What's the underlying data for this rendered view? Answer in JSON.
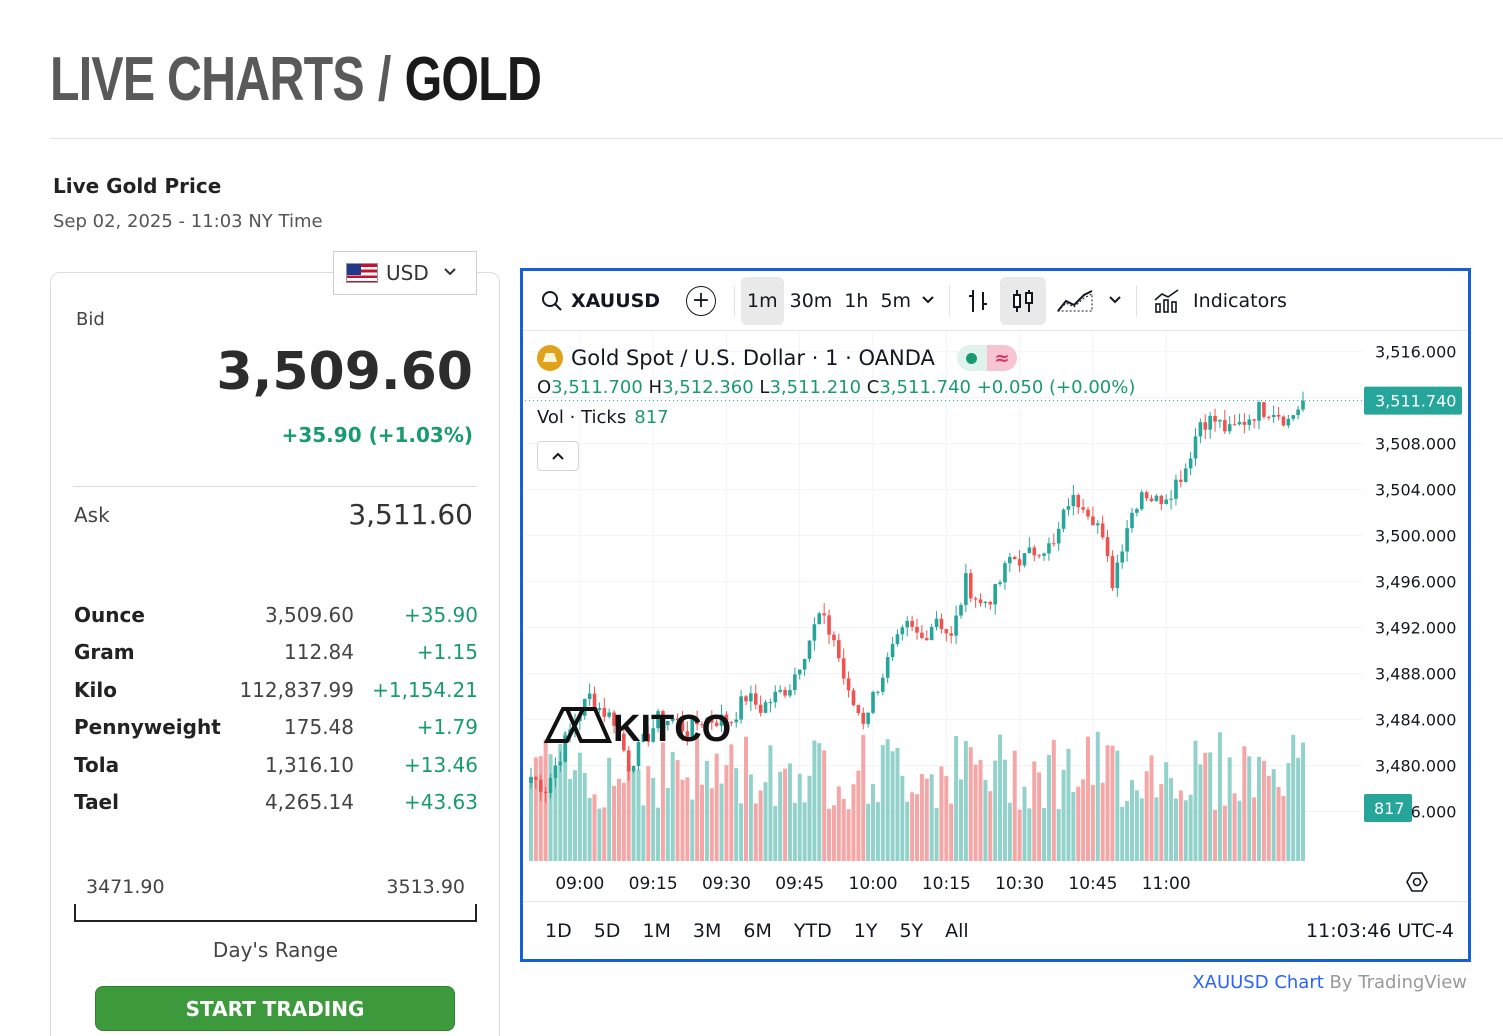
{
  "heading": {
    "part1": "LIVE CHARTS",
    "separator": "/",
    "part2": "GOLD"
  },
  "live_gold": {
    "title": "Live Gold Price",
    "timestamp": "Sep 02, 2025 - 11:03 NY Time"
  },
  "currency": {
    "selected": "USD"
  },
  "bid": {
    "label": "Bid",
    "value": "3,509.60",
    "change": "+35.90 (+1.03%)"
  },
  "ask": {
    "label": "Ask",
    "value": "3,511.60"
  },
  "units": [
    {
      "name": "Ounce",
      "price": "3,509.60",
      "change": "+35.90"
    },
    {
      "name": "Gram",
      "price": "112.84",
      "change": "+1.15"
    },
    {
      "name": "Kilo",
      "price": "112,837.99",
      "change": "+1,154.21"
    },
    {
      "name": "Pennyweight",
      "price": "175.48",
      "change": "+1.79"
    },
    {
      "name": "Tola",
      "price": "1,316.10",
      "change": "+13.46"
    },
    {
      "name": "Tael",
      "price": "4,265.14",
      "change": "+43.63"
    }
  ],
  "day_range": {
    "low": "3471.90",
    "high": "3513.90",
    "label": "Day's Range"
  },
  "cta": {
    "start_trading": "START TRADING"
  },
  "tv": {
    "symbol": "XAUUSD",
    "intervals": [
      "1m",
      "30m",
      "1h",
      "5m"
    ],
    "active_interval": "1m",
    "indicators_label": "Indicators",
    "legend_title": "Gold Spot / U.S. Dollar · 1 · OANDA",
    "ohlc": {
      "o_label": "O",
      "o": "3,511.700",
      "h_label": "H",
      "h": "3,512.360",
      "l_label": "L",
      "l": "3,511.210",
      "c_label": "C",
      "c": "3,511.740",
      "change": "+0.050 (+0.00%)"
    },
    "volume": {
      "label": "Vol · Ticks",
      "value": "817"
    },
    "watermark": "KITCO",
    "last_price_tag": "3,511.740",
    "volume_tag": "817",
    "ranges": [
      "1D",
      "5D",
      "1M",
      "3M",
      "6M",
      "YTD",
      "1Y",
      "5Y",
      "All"
    ],
    "clock": "11:03:46 UTC-4",
    "attribution_link": "XAUUSD Chart",
    "attribution_by": "By TradingView",
    "colors": {
      "up": "#26a69a",
      "down": "#ef5350",
      "up_vol": "#92d2cb",
      "down_vol": "#f4a7a6",
      "frame": "#1560d4"
    }
  },
  "chart_data": {
    "type": "candlestick",
    "interval": "1m",
    "x_ticks": [
      "09:00",
      "09:15",
      "09:30",
      "09:45",
      "10:00",
      "10:15",
      "10:30",
      "10:45",
      "11:00"
    ],
    "y_ticks": [
      3516,
      3512,
      3508,
      3504,
      3500,
      3496,
      3492,
      3488,
      3484,
      3480,
      3476
    ],
    "y_tick_labels": [
      "3,516.000",
      "3,512.000",
      "3,508.000",
      "3,504.000",
      "3,500.000",
      "3,496.000",
      "3,492.000",
      "3,488.000",
      "3,484.000",
      "3,480.000",
      "3,476.000"
    ],
    "ylim": [
      3474.3,
      3517.8
    ],
    "close_path": [
      [
        0,
        3479
      ],
      [
        3,
        3478
      ],
      [
        6,
        3481
      ],
      [
        9,
        3484
      ],
      [
        12,
        3486
      ],
      [
        14,
        3485
      ],
      [
        17,
        3484
      ],
      [
        20,
        3480
      ],
      [
        23,
        3482
      ],
      [
        26,
        3484
      ],
      [
        29,
        3484
      ],
      [
        32,
        3483
      ],
      [
        35,
        3484
      ],
      [
        38,
        3484
      ],
      [
        41,
        3484
      ],
      [
        44,
        3486
      ],
      [
        47,
        3485
      ],
      [
        50,
        3486
      ],
      [
        53,
        3487
      ],
      [
        56,
        3490
      ],
      [
        59,
        3493
      ],
      [
        62,
        3491
      ],
      [
        65,
        3486
      ],
      [
        68,
        3484
      ],
      [
        71,
        3487
      ],
      [
        74,
        3490
      ],
      [
        77,
        3492
      ],
      [
        80,
        3491
      ],
      [
        83,
        3493
      ],
      [
        86,
        3491
      ],
      [
        89,
        3496
      ],
      [
        92,
        3494
      ],
      [
        95,
        3495
      ],
      [
        98,
        3498
      ],
      [
        101,
        3498
      ],
      [
        104,
        3499
      ],
      [
        107,
        3499
      ],
      [
        110,
        3503
      ],
      [
        113,
        3503
      ],
      [
        116,
        3501
      ],
      [
        119,
        3496
      ],
      [
        122,
        3501
      ],
      [
        125,
        3504
      ],
      [
        128,
        3503
      ],
      [
        131,
        3504
      ],
      [
        134,
        3506
      ],
      [
        137,
        3510
      ],
      [
        140,
        3510
      ],
      [
        143,
        3509
      ],
      [
        146,
        3510
      ],
      [
        149,
        3511
      ],
      [
        152,
        3511
      ],
      [
        155,
        3510
      ],
      [
        158,
        3511.74
      ]
    ],
    "volume_range": [
      0,
      1000
    ],
    "last_close": 3511.74,
    "last_volume": 817
  }
}
